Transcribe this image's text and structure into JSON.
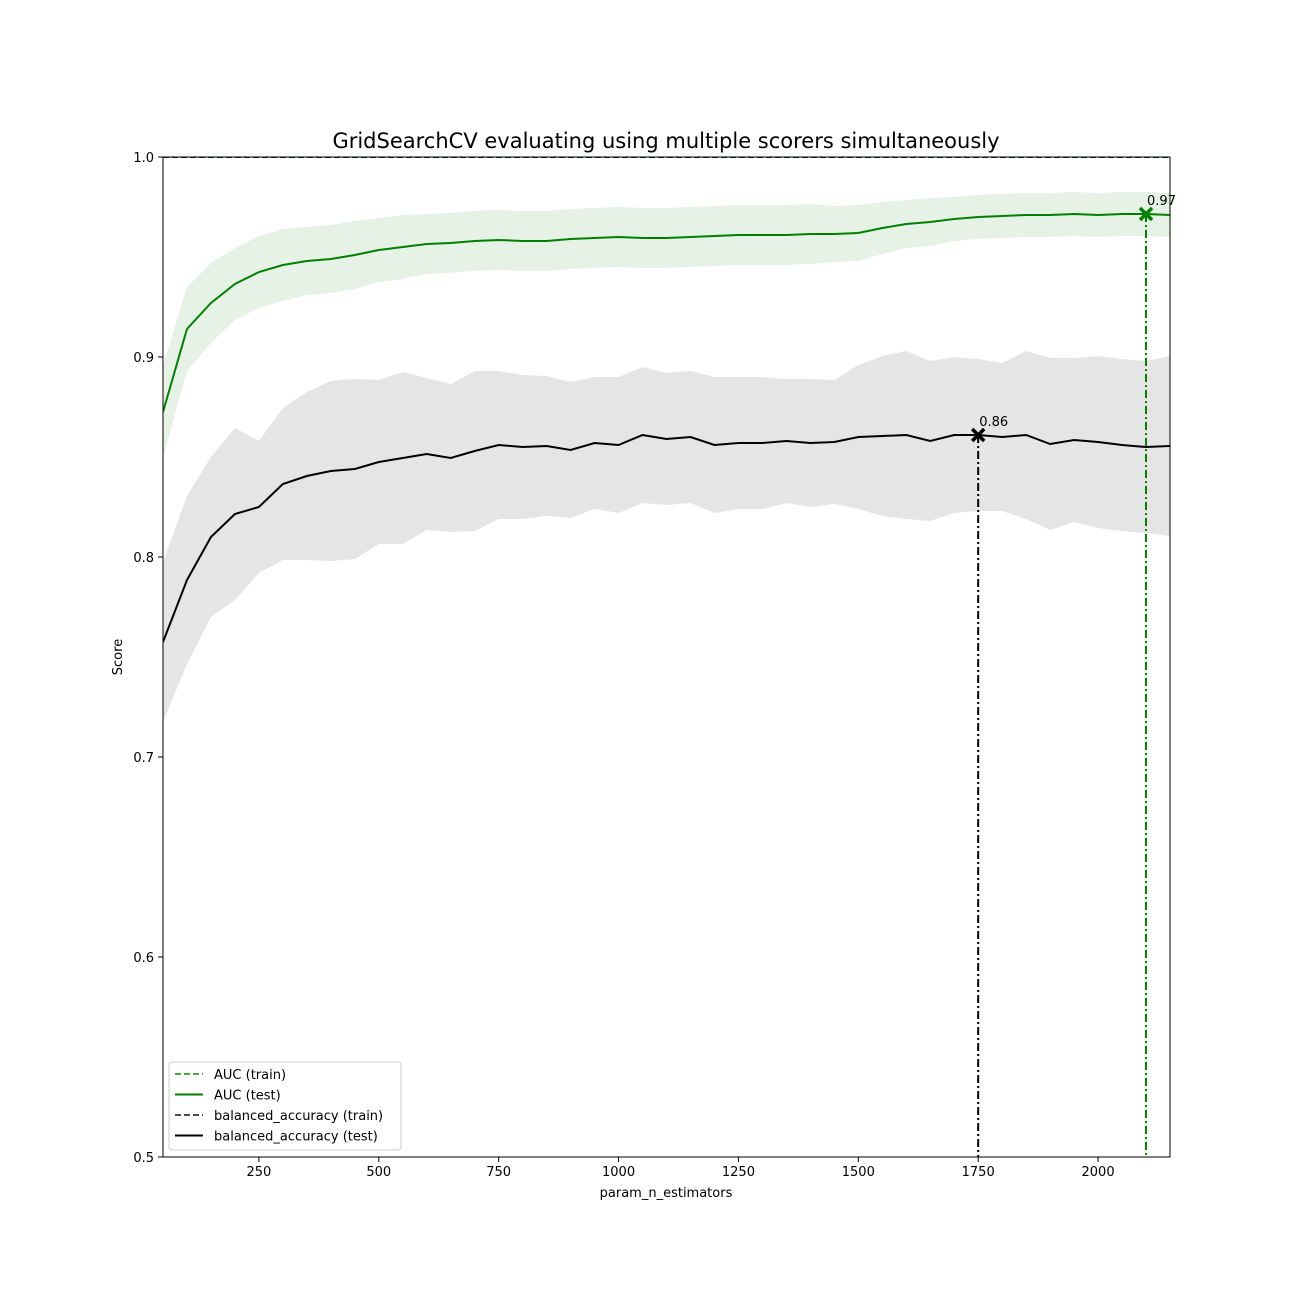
{
  "chart_data": {
    "type": "line",
    "title": "GridSearchCV evaluating using multiple scorers simultaneously",
    "xlabel": "param_n_estimators",
    "ylabel": "Score",
    "xlim": [
      50,
      2150
    ],
    "ylim": [
      0.5,
      1
    ],
    "xticks": [
      250,
      500,
      750,
      1000,
      1250,
      1500,
      1750,
      2000
    ],
    "yticks": [
      0.5,
      0.6,
      0.7,
      0.8,
      0.9,
      {
        "value": 1,
        "label": "1.0"
      }
    ],
    "legend": "lower left",
    "x": [
      50,
      100,
      150,
      200,
      250,
      300,
      350,
      400,
      450,
      500,
      550,
      600,
      650,
      700,
      750,
      800,
      850,
      900,
      950,
      1000,
      1050,
      1100,
      1150,
      1200,
      1250,
      1300,
      1350,
      1400,
      1450,
      1500,
      1550,
      1600,
      1650,
      1700,
      1750,
      1800,
      1850,
      1900,
      1950,
      2000,
      2050,
      2100,
      2150
    ],
    "series": [
      {
        "name": "AUC (train)",
        "color": "#008000",
        "dash": "dashed",
        "values": [
          1,
          1,
          1,
          1,
          1,
          1,
          1,
          1,
          1,
          1,
          1,
          1,
          1,
          1,
          1,
          1,
          1,
          1,
          1,
          1,
          1,
          1,
          1,
          1,
          1,
          1,
          1,
          1,
          1,
          1,
          1,
          1,
          1,
          1,
          1,
          1,
          1,
          1,
          1,
          1,
          1,
          1,
          1
        ]
      },
      {
        "name": "AUC (test)",
        "color": "#008000",
        "dash": "solid",
        "values": [
          0.8725,
          0.914,
          0.927,
          0.9365,
          0.9425,
          0.946,
          0.948,
          0.949,
          0.951,
          0.9535,
          0.955,
          0.9565,
          0.957,
          0.958,
          0.9585,
          0.958,
          0.958,
          0.959,
          0.9595,
          0.96,
          0.9595,
          0.9595,
          0.96,
          0.9605,
          0.961,
          0.961,
          0.961,
          0.9615,
          0.9615,
          0.962,
          0.9645,
          0.9665,
          0.9675,
          0.969,
          0.97,
          0.9705,
          0.971,
          0.971,
          0.9715,
          0.971,
          0.9715,
          0.9715,
          0.971
        ],
        "std": [
          0.023,
          0.021,
          0.02,
          0.018,
          0.018,
          0.018,
          0.017,
          0.017,
          0.017,
          0.016,
          0.016,
          0.015,
          0.015,
          0.015,
          0.015,
          0.015,
          0.015,
          0.015,
          0.015,
          0.015,
          0.015,
          0.015,
          0.015,
          0.015,
          0.015,
          0.015,
          0.015,
          0.015,
          0.014,
          0.014,
          0.013,
          0.012,
          0.012,
          0.011,
          0.011,
          0.011,
          0.011,
          0.011,
          0.011,
          0.011,
          0.011,
          0.011,
          0.011
        ]
      },
      {
        "name": "balanced_accuracy (train)",
        "color": "#000000",
        "dash": "dashed",
        "values": [
          1,
          1,
          1,
          1,
          1,
          1,
          1,
          1,
          1,
          1,
          1,
          1,
          1,
          1,
          1,
          1,
          1,
          1,
          1,
          1,
          1,
          1,
          1,
          1,
          1,
          1,
          1,
          1,
          1,
          1,
          1,
          1,
          1,
          1,
          1,
          1,
          1,
          1,
          1,
          1,
          1,
          1,
          1
        ]
      },
      {
        "name": "balanced_accuracy (test)",
        "color": "#000000",
        "dash": "solid",
        "values": [
          0.7575,
          0.7885,
          0.81,
          0.8215,
          0.825,
          0.8365,
          0.8405,
          0.843,
          0.844,
          0.8475,
          0.8495,
          0.8515,
          0.8495,
          0.853,
          0.856,
          0.855,
          0.8555,
          0.8535,
          0.857,
          0.856,
          0.861,
          0.859,
          0.86,
          0.856,
          0.857,
          0.857,
          0.858,
          0.857,
          0.8575,
          0.86,
          0.8605,
          0.861,
          0.858,
          0.861,
          0.861,
          0.86,
          0.861,
          0.8565,
          0.8585,
          0.8575,
          0.856,
          0.855,
          0.8555
        ],
        "std": [
          0.04,
          0.042,
          0.04,
          0.043,
          0.033,
          0.038,
          0.042,
          0.045,
          0.045,
          0.041,
          0.043,
          0.038,
          0.037,
          0.04,
          0.037,
          0.036,
          0.035,
          0.034,
          0.033,
          0.034,
          0.034,
          0.033,
          0.033,
          0.034,
          0.033,
          0.033,
          0.031,
          0.032,
          0.031,
          0.036,
          0.04,
          0.042,
          0.04,
          0.039,
          0.038,
          0.037,
          0.042,
          0.043,
          0.041,
          0.043,
          0.043,
          0.043,
          0.045
        ]
      }
    ],
    "annotations": [
      {
        "x": 1750,
        "y": 0.861,
        "label": "0.86",
        "color": "#000000"
      },
      {
        "x": 2100,
        "y": 0.9715,
        "label": "0.97",
        "color": "#008000"
      }
    ]
  }
}
